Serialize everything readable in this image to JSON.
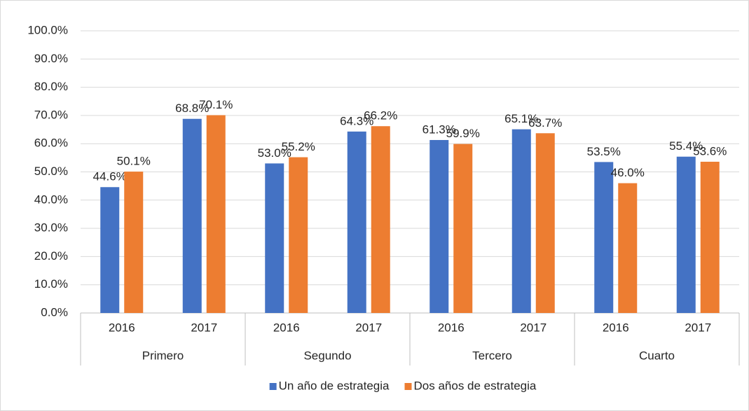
{
  "chart_data": {
    "type": "bar",
    "categories": [
      "2016",
      "2017",
      "2016",
      "2017",
      "2016",
      "2017",
      "2016",
      "2017"
    ],
    "group_labels": [
      "Primero",
      "Segundo",
      "Tercero",
      "Cuarto"
    ],
    "series": [
      {
        "name": "Un año de estrategia",
        "color": "#4472c4",
        "values": [
          44.6,
          68.8,
          53.0,
          64.3,
          61.3,
          65.1,
          53.5,
          55.4
        ],
        "value_labels": [
          "44.6%",
          "68.8%",
          "53.0%",
          "64.3%",
          "61.3%",
          "65.1%",
          "53.5%",
          "55.4%"
        ]
      },
      {
        "name": "Dos años de estrategia",
        "color": "#ed7d31",
        "values": [
          50.1,
          70.1,
          55.2,
          66.2,
          59.9,
          63.7,
          46.0,
          53.6
        ],
        "value_labels": [
          "50.1%",
          "70.1%",
          "55.2%",
          "66.2%",
          "59.9%",
          "63.7%",
          "46.0%",
          "53.6%"
        ]
      }
    ],
    "ylim": [
      0,
      100
    ],
    "yticks": [
      {
        "value": 0,
        "label": "0.0%"
      },
      {
        "value": 10,
        "label": "10.0%"
      },
      {
        "value": 20,
        "label": "20.0%"
      },
      {
        "value": 30,
        "label": "30.0%"
      },
      {
        "value": 40,
        "label": "40.0%"
      },
      {
        "value": 50,
        "label": "50.0%"
      },
      {
        "value": 60,
        "label": "60.0%"
      },
      {
        "value": 70,
        "label": "70.0%"
      },
      {
        "value": 80,
        "label": "80.0%"
      },
      {
        "value": 90,
        "label": "90.0%"
      },
      {
        "value": 100,
        "label": "100.0%"
      }
    ],
    "grid": true,
    "legend": "bottom"
  }
}
